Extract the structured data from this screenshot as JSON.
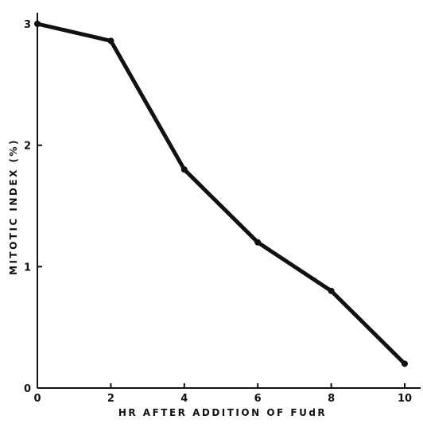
{
  "chart_data": {
    "type": "line",
    "title": "",
    "xlabel": "HR AFTER ADDITION OF FUdR",
    "ylabel": "MITOTIC INDEX (%)",
    "x": [
      0,
      2,
      4,
      6,
      8,
      10
    ],
    "series": [
      {
        "values": [
          3.0,
          2.86,
          1.8,
          1.2,
          0.8,
          0.2
        ]
      }
    ],
    "xlim": [
      0,
      10
    ],
    "ylim": [
      0,
      3
    ],
    "xticks": [
      "0",
      "2",
      "4",
      "6",
      "8",
      "10"
    ],
    "yticks": [
      "0",
      "1",
      "2",
      "3"
    ],
    "grid": false,
    "legend": "none",
    "colors": {
      "line": "#111111",
      "axis": "#111111"
    }
  }
}
